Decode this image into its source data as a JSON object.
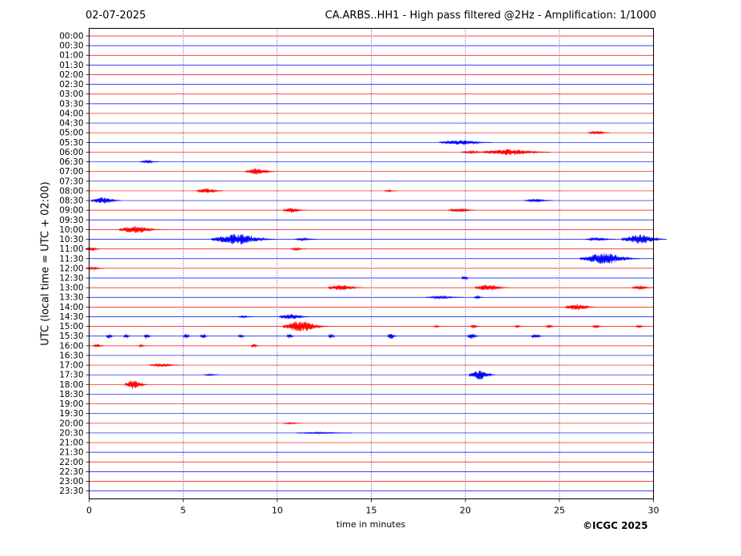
{
  "header": {
    "date": "02-07-2025",
    "title": "CA.ARBS..HH1 - High pass filtered @2Hz - Amplification: 1/1000"
  },
  "footer": {
    "copyright": "©ICGC 2025"
  },
  "chart_data": {
    "type": "line",
    "title": "CA.ARBS..HH1 - High pass filtered @2Hz - Amplification: 1/1000",
    "xlabel": "time in minutes",
    "ylabel": "UTC (local time = UTC + 02:00)",
    "xlim": [
      0,
      30
    ],
    "x_ticks": [
      0,
      5,
      10,
      15,
      20,
      25,
      30
    ],
    "x_gridlines": [
      5,
      10,
      15,
      20,
      25
    ],
    "row_colors": [
      "#ff0000",
      "#0000ff"
    ],
    "rows": [
      {
        "label": "00:00",
        "events": []
      },
      {
        "label": "00:30",
        "events": []
      },
      {
        "label": "01:00",
        "events": []
      },
      {
        "label": "01:30",
        "events": []
      },
      {
        "label": "02:00",
        "events": []
      },
      {
        "label": "02:30",
        "events": []
      },
      {
        "label": "03:00",
        "events": []
      },
      {
        "label": "03:30",
        "events": []
      },
      {
        "label": "04:00",
        "events": []
      },
      {
        "label": "04:30",
        "events": []
      },
      {
        "label": "05:00",
        "events": [
          {
            "t": 27.1,
            "amp": 2,
            "dur": 1.2
          }
        ]
      },
      {
        "label": "05:30",
        "events": [
          {
            "t": 20.0,
            "amp": 3,
            "dur": 2.8
          }
        ]
      },
      {
        "label": "06:00",
        "events": [
          {
            "t": 22.7,
            "amp": 4,
            "dur": 3.6
          },
          {
            "t": 20.5,
            "amp": 1.5,
            "dur": 1.5
          }
        ]
      },
      {
        "label": "06:30",
        "events": [
          {
            "t": 3.2,
            "amp": 1.5,
            "dur": 1
          }
        ]
      },
      {
        "label": "07:00",
        "events": [
          {
            "t": 9.1,
            "amp": 4,
            "dur": 1.6
          }
        ]
      },
      {
        "label": "07:30",
        "events": []
      },
      {
        "label": "08:00",
        "events": [
          {
            "t": 6.4,
            "amp": 3,
            "dur": 1.4
          },
          {
            "t": 16.0,
            "amp": 1.2,
            "dur": 0.6
          }
        ]
      },
      {
        "label": "08:30",
        "events": [
          {
            "t": 0.9,
            "amp": 4,
            "dur": 1.6
          },
          {
            "t": 23.9,
            "amp": 2,
            "dur": 1.5
          }
        ]
      },
      {
        "label": "09:00",
        "events": [
          {
            "t": 10.9,
            "amp": 3,
            "dur": 1.2
          },
          {
            "t": 19.8,
            "amp": 2.5,
            "dur": 1.4
          }
        ]
      },
      {
        "label": "09:30",
        "events": []
      },
      {
        "label": "10:00",
        "events": [
          {
            "t": 2.7,
            "amp": 5,
            "dur": 2.2
          }
        ]
      },
      {
        "label": "10:30",
        "events": [
          {
            "t": 8.2,
            "amp": 7,
            "dur": 3.4
          },
          {
            "t": 11.5,
            "amp": 1.5,
            "dur": 1.2
          },
          {
            "t": 29.5,
            "amp": 6,
            "dur": 2.4
          },
          {
            "t": 27.2,
            "amp": 2,
            "dur": 1.6
          }
        ]
      },
      {
        "label": "11:00",
        "events": [
          {
            "t": 0.2,
            "amp": 2.5,
            "dur": 0.8
          },
          {
            "t": 11.1,
            "amp": 1.5,
            "dur": 0.8
          }
        ]
      },
      {
        "label": "11:30",
        "events": [
          {
            "t": 27.7,
            "amp": 7,
            "dur": 3.2
          }
        ]
      },
      {
        "label": "12:00",
        "events": [
          {
            "t": 0.3,
            "amp": 1.5,
            "dur": 1
          }
        ]
      },
      {
        "label": "12:30",
        "events": [
          {
            "t": 20.0,
            "amp": 3,
            "dur": 0.4
          }
        ]
      },
      {
        "label": "13:00",
        "events": [
          {
            "t": 13.6,
            "amp": 4,
            "dur": 1.8
          },
          {
            "t": 21.4,
            "amp": 4,
            "dur": 1.8
          },
          {
            "t": 29.4,
            "amp": 2.5,
            "dur": 1.1
          }
        ]
      },
      {
        "label": "13:30",
        "events": [
          {
            "t": 18.9,
            "amp": 1.5,
            "dur": 2
          },
          {
            "t": 20.7,
            "amp": 1.5,
            "dur": 0.5
          }
        ]
      },
      {
        "label": "14:00",
        "events": [
          {
            "t": 26.1,
            "amp": 4,
            "dur": 1.6
          }
        ]
      },
      {
        "label": "14:30",
        "events": [
          {
            "t": 10.9,
            "amp": 3.5,
            "dur": 1.6
          },
          {
            "t": 8.3,
            "amp": 1.2,
            "dur": 0.8
          }
        ]
      },
      {
        "label": "15:00",
        "events": [
          {
            "t": 11.5,
            "amp": 7,
            "dur": 2.4
          },
          {
            "t": 20.5,
            "amp": 2,
            "dur": 0.5
          },
          {
            "t": 24.5,
            "amp": 2,
            "dur": 0.5
          },
          {
            "t": 27.0,
            "amp": 2,
            "dur": 0.5
          },
          {
            "t": 29.3,
            "amp": 2,
            "dur": 0.5
          },
          {
            "t": 18.5,
            "amp": 1.5,
            "dur": 0.4
          },
          {
            "t": 22.8,
            "amp": 1.5,
            "dur": 0.4
          }
        ]
      },
      {
        "label": "15:30",
        "events": [
          {
            "t": 1.1,
            "amp": 3,
            "dur": 0.4
          },
          {
            "t": 2.0,
            "amp": 2.5,
            "dur": 0.4
          },
          {
            "t": 3.1,
            "amp": 3,
            "dur": 0.4
          },
          {
            "t": 5.2,
            "amp": 3,
            "dur": 0.4
          },
          {
            "t": 6.1,
            "amp": 3,
            "dur": 0.4
          },
          {
            "t": 8.1,
            "amp": 2,
            "dur": 0.4
          },
          {
            "t": 10.7,
            "amp": 3,
            "dur": 0.4
          },
          {
            "t": 12.9,
            "amp": 3,
            "dur": 0.4
          },
          {
            "t": 16.1,
            "amp": 4,
            "dur": 0.5
          },
          {
            "t": 20.4,
            "amp": 3.5,
            "dur": 0.6
          },
          {
            "t": 23.8,
            "amp": 3,
            "dur": 0.6
          }
        ]
      },
      {
        "label": "16:00",
        "events": [
          {
            "t": 0.5,
            "amp": 2,
            "dur": 0.6
          },
          {
            "t": 2.8,
            "amp": 1.5,
            "dur": 0.4
          },
          {
            "t": 8.8,
            "amp": 3,
            "dur": 0.4
          }
        ]
      },
      {
        "label": "16:30",
        "events": []
      },
      {
        "label": "17:00",
        "events": [
          {
            "t": 4.0,
            "amp": 2,
            "dur": 1.6
          }
        ]
      },
      {
        "label": "17:30",
        "events": [
          {
            "t": 20.9,
            "amp": 6,
            "dur": 1.4
          },
          {
            "t": 6.5,
            "amp": 1,
            "dur": 0.8
          }
        ]
      },
      {
        "label": "18:00",
        "events": [
          {
            "t": 2.5,
            "amp": 6,
            "dur": 1.2
          }
        ]
      },
      {
        "label": "18:30",
        "events": []
      },
      {
        "label": "19:00",
        "events": []
      },
      {
        "label": "19:30",
        "events": []
      },
      {
        "label": "20:00",
        "events": [
          {
            "t": 10.8,
            "amp": 1,
            "dur": 1
          }
        ]
      },
      {
        "label": "20:30",
        "events": [
          {
            "t": 12.5,
            "amp": 1,
            "dur": 3
          }
        ]
      },
      {
        "label": "21:00",
        "events": []
      },
      {
        "label": "21:30",
        "events": []
      },
      {
        "label": "22:00",
        "events": []
      },
      {
        "label": "22:30",
        "events": []
      },
      {
        "label": "23:00",
        "events": []
      },
      {
        "label": "23:30",
        "events": []
      }
    ]
  }
}
